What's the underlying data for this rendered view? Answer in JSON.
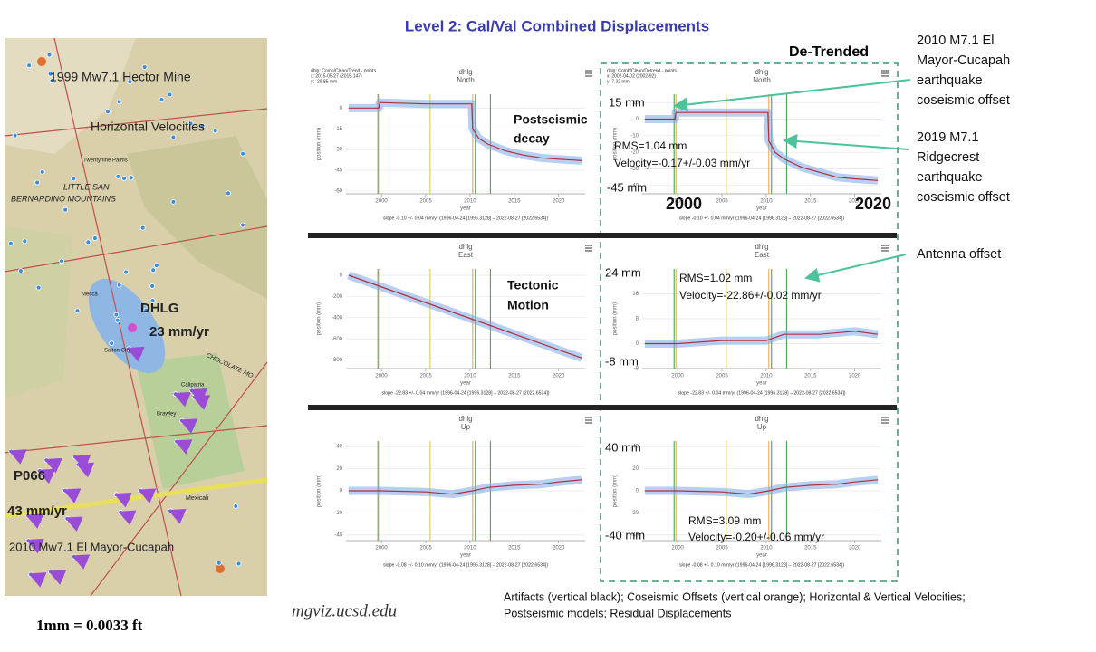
{
  "slide": {
    "title": "Level 2: Cal/Val Combined Displacements",
    "detrended_label": "De-Trended",
    "website": "mgviz.ucsd.edu",
    "conversion": "1mm = 0.0033 ft",
    "footer": [
      "Artifacts (vertical black); Coseismic Offsets (vertical orange); Horizontal & Vertical Velocities;",
      "Postseismic models; Residual Displacements"
    ]
  },
  "map": {
    "labels": [
      "1999 Mw7.1 Hector Mine",
      "Horizontal Velocities",
      "Twentynine Palms",
      "LITTLE SAN",
      "BERNARDINO MOUNTAINS",
      "DHLG",
      "23 mm/yr",
      "Salton City",
      "Calipatria",
      "Brawley",
      "P066",
      "43 mm/yr",
      "Mexicali",
      "2010 Mw7.1 El Mayor-Cucapah",
      "Mecca",
      "CHOCOLATE MO"
    ]
  },
  "callouts": [
    [
      "2010 M7.1 El",
      "Mayor-Cucapah",
      "earthquake",
      "coseismic offset"
    ],
    [
      "2019 M7.1",
      "Ridgecrest",
      "earthquake",
      "coseismic offset"
    ],
    [
      "Antenna offset"
    ]
  ],
  "event_lines": [
    {
      "x": 1999.6,
      "color": "#3a9a4a"
    },
    {
      "x": 1999.8,
      "color": "#e8a33a"
    },
    {
      "x": 2005.5,
      "color": "#e8c03a"
    },
    {
      "x": 2010.3,
      "color": "#e8a33a"
    },
    {
      "x": 2010.6,
      "color": "#3a9a4a"
    },
    {
      "x": 2012.3,
      "color": "#3a9a4a"
    }
  ],
  "chart_data": [
    {
      "type": "line",
      "title": "dhlg",
      "subtitle": "North",
      "header": [
        "dhlg: Comb/Clean/Trend - points",
        "x: 2015-05-27 (2015-147)",
        "y: -29.85 mm"
      ],
      "x": [
        1996.3,
        1999.7,
        1999.8,
        2005,
        2010.2,
        2010.3,
        2011,
        2012,
        2014,
        2016,
        2018,
        2020,
        2022.6
      ],
      "values": [
        0,
        0,
        4,
        3,
        3,
        -15,
        -22,
        -26,
        -31,
        -34,
        -36,
        -37,
        -38
      ],
      "color": "#7aa8e8",
      "model_color": "#b0303a",
      "xlim": [
        1996,
        2023
      ],
      "ylim": [
        -62,
        10
      ],
      "xticks": [
        2000,
        2005,
        2010,
        2015,
        2020
      ],
      "yticks": [
        0,
        -15,
        -30,
        -45,
        -60
      ],
      "xlabel": "year",
      "ylabel": "position (mm)",
      "footnote": "slope -0.10 +/- 0.04 mm/yr (1996-04-24 [1996.3128] – 2022-08-27 [2022.6534])",
      "annotations": [
        "Postseismic",
        "decay"
      ]
    },
    {
      "type": "line",
      "title": "dhlg",
      "subtitle": "North",
      "header": [
        "dhlg: Comb/Clean/Detrend - points",
        "x: 2002-04-02 (2002-92)",
        "y: 7.32 mm"
      ],
      "x": [
        1996.3,
        1999.7,
        1999.8,
        2005,
        2010.2,
        2010.3,
        2011,
        2012,
        2014,
        2016,
        2018,
        2020,
        2022.6
      ],
      "values": [
        0,
        0,
        4,
        4,
        4,
        -13,
        -20,
        -24,
        -29,
        -32,
        -35,
        -36,
        -37
      ],
      "color": "#7aa8e8",
      "model_color": "#b0303a",
      "xlim": [
        1996,
        2023
      ],
      "ylim": [
        -45,
        15
      ],
      "xticks": [
        2000,
        2005,
        2010,
        2015,
        2020
      ],
      "yticks": [
        10,
        0,
        -10,
        -20,
        -30,
        -40
      ],
      "xlabel": "year",
      "ylabel": "position (mm)",
      "footnote": "slope -0.10 +/- 0.04 mm/yr (1996-04-24 [1996.3128] – 2022-08-27 [2022.6534])",
      "annotations": [
        "15 mm",
        "-45 mm",
        "2000",
        "2020",
        "RMS=1.04 mm",
        "Velocity=-0.17+/-0.03 mm/yr"
      ]
    },
    {
      "type": "line",
      "title": "dhlg",
      "subtitle": "East",
      "x": [
        1996.3,
        2022.6
      ],
      "values": [
        0,
        -780
      ],
      "color": "#7aa8e8",
      "model_color": "#b0303a",
      "xlim": [
        1996,
        2023
      ],
      "ylim": [
        -880,
        60
      ],
      "xticks": [
        2000,
        2005,
        2010,
        2015,
        2020
      ],
      "yticks": [
        0,
        -200,
        -400,
        -600,
        -800
      ],
      "xlabel": "year",
      "ylabel": "position (mm)",
      "footnote": "slope -22.83 +/- 0.04 mm/yr (1996-04-24 [1996.3128] – 2022-08-27 [2022.6534])",
      "annotations": [
        "Tectonic",
        "Motion"
      ]
    },
    {
      "type": "line",
      "title": "dhlg",
      "subtitle": "East",
      "x": [
        1996.3,
        2000,
        2005,
        2010,
        2012,
        2016,
        2020,
        2022.6
      ],
      "values": [
        0,
        0,
        1,
        1,
        3,
        3,
        4,
        3
      ],
      "color": "#7aa8e8",
      "model_color": "#b0303a",
      "xlim": [
        1996,
        2023
      ],
      "ylim": [
        -8,
        24
      ],
      "xticks": [
        2000,
        2005,
        2010,
        2015,
        2020
      ],
      "yticks": [
        16,
        8,
        0,
        -8
      ],
      "xlabel": "year",
      "ylabel": "position (mm)",
      "footnote": "slope -22.83 +/- 0.04 mm/yr (1996-04-24 [1996.3128] – 2022-08-27 [2022.6534])",
      "annotations": [
        "24 mm",
        "-8 mm",
        "RMS=1.02 mm",
        "Velocity=-22.86+/-0.02 mm/yr"
      ]
    },
    {
      "type": "line",
      "title": "dhlg",
      "subtitle": "Up",
      "x": [
        1996.3,
        2000,
        2005,
        2008,
        2010.3,
        2012,
        2015,
        2018,
        2020,
        2022.6
      ],
      "values": [
        0,
        0,
        -1,
        -3,
        0,
        3,
        5,
        6,
        8,
        10
      ],
      "color": "#7aa8e8",
      "model_color": "#b0303a",
      "xlim": [
        1996,
        2023
      ],
      "ylim": [
        -45,
        45
      ],
      "xticks": [
        2000,
        2005,
        2010,
        2015,
        2020
      ],
      "yticks": [
        40,
        20,
        0,
        -20,
        -40
      ],
      "xlabel": "year",
      "ylabel": "position (mm)",
      "footnote": "slope -0.08 +/- 0.10 mm/yr (1996-04-24 [1996.3128] – 2022-08-27 [2022.6534])",
      "annotations": []
    },
    {
      "type": "line",
      "title": "dhlg",
      "subtitle": "Up",
      "x": [
        1996.3,
        2000,
        2005,
        2008,
        2010.3,
        2012,
        2015,
        2018,
        2020,
        2022.6
      ],
      "values": [
        0,
        0,
        -1,
        -3,
        0,
        3,
        5,
        6,
        8,
        10
      ],
      "color": "#7aa8e8",
      "model_color": "#b0303a",
      "xlim": [
        1996,
        2023
      ],
      "ylim": [
        -45,
        45
      ],
      "xticks": [
        2000,
        2005,
        2010,
        2015,
        2020
      ],
      "yticks": [
        40,
        20,
        0,
        -20,
        -40
      ],
      "xlabel": "year",
      "ylabel": "position (mm)",
      "footnote": "slope -0.08 +/- 0.10 mm/yr (1996-04-24 [1996.3128] – 2022-08-27 [2022.6534])",
      "annotations": [
        "40 mm",
        "-40 mm",
        "RMS=3.09 mm",
        "Velocity=-0.20+/-0.06 mm/yr"
      ]
    }
  ]
}
